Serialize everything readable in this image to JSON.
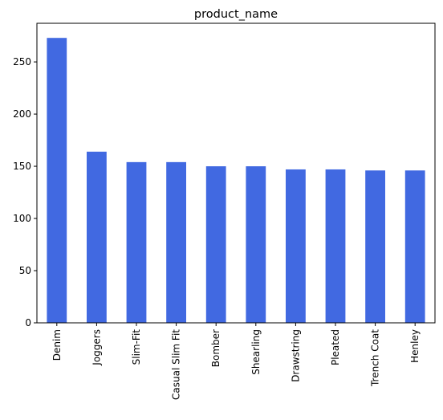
{
  "chart_data": {
    "type": "bar",
    "title": "product_name",
    "xlabel": "",
    "ylabel": "",
    "categories": [
      "Denim",
      "Joggers",
      "Slim-Fit",
      "Casual Slim Fit",
      "Bomber",
      "Shearling",
      "Drawstring",
      "Pleated",
      "Trench Coat",
      "Henley"
    ],
    "values": [
      273,
      164,
      154,
      154,
      150,
      150,
      147,
      147,
      146,
      146
    ],
    "ylim": [
      0,
      287
    ],
    "yticks": [
      0,
      50,
      100,
      150,
      200,
      250
    ],
    "grid": false,
    "legend": "none",
    "bar_color": "#4169e1"
  }
}
